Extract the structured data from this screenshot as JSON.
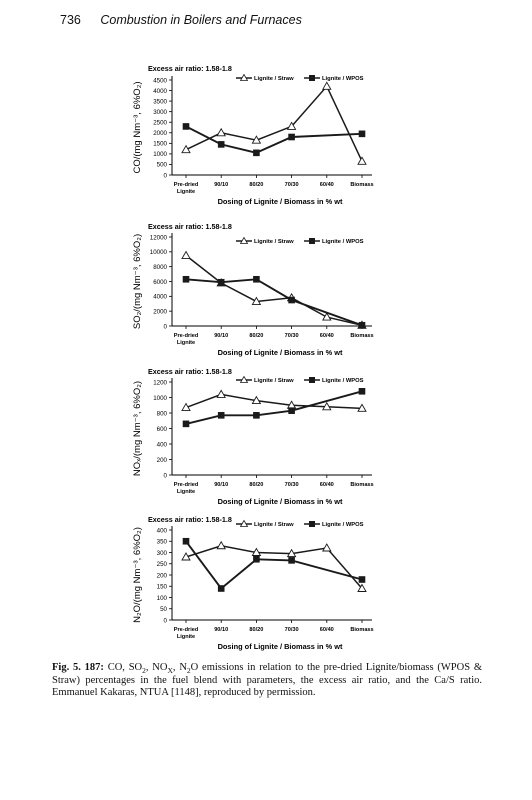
{
  "header": {
    "page_number": "736",
    "running_title": "Combustion in Boilers and Furnaces"
  },
  "caption": {
    "label": "Fig. 5. 187:",
    "text_parts": [
      " CO, SO",
      "2",
      ", NO",
      "X",
      ", N",
      "2",
      "O emissions in relation to the pre-dried Lignite/biomass (WPOS & Straw) percentages in the fuel blend with parameters, the excess air ratio, and the Ca/S ratio. Emmanuel Kakaras, NTUA [1148], reproduced by permission."
    ]
  },
  "chart_data": [
    {
      "type": "line",
      "title": "Excess air ratio: 1.58-1.8",
      "ylabel": "CO/(mg Nm⁻³, 6%O₂)",
      "xlabel": "Dosing of Lignite / Biomass in % wt",
      "categories": [
        "Pre-dried Lignite",
        "90/10",
        "80/20",
        "70/30",
        "60/40",
        "Biomass"
      ],
      "ylim": [
        0,
        4500
      ],
      "yticks": [
        0,
        500,
        1000,
        1500,
        2000,
        2500,
        3000,
        3500,
        4000,
        4500
      ],
      "series": [
        {
          "name": "Lignite / Straw",
          "marker": "triangle",
          "x": [
            0,
            1,
            2,
            3,
            4,
            5
          ],
          "values": [
            1200,
            2000,
            1650,
            2300,
            4200,
            650
          ]
        },
        {
          "name": "Lignite / WPOS",
          "marker": "square",
          "x": [
            0,
            1,
            2,
            3,
            5
          ],
          "values": [
            2300,
            1450,
            1050,
            1800,
            1950
          ]
        }
      ]
    },
    {
      "type": "line",
      "title": "Excess air ratio: 1.58-1.8",
      "ylabel": "SO₂/(mg Nm⁻³, 6%O₂)",
      "xlabel": "Dosing of Lignite / Biomass in % wt",
      "categories": [
        "Pre-dried Lignite",
        "90/10",
        "80/20",
        "70/30",
        "60/40",
        "Biomass"
      ],
      "ylim": [
        0,
        12000
      ],
      "yticks": [
        0,
        2000,
        4000,
        6000,
        8000,
        10000,
        12000
      ],
      "series": [
        {
          "name": "Lignite / Straw",
          "marker": "triangle",
          "x": [
            0,
            1,
            2,
            3,
            4,
            5
          ],
          "values": [
            9500,
            5800,
            3300,
            3800,
            1200,
            100
          ]
        },
        {
          "name": "Lignite / WPOS",
          "marker": "square",
          "x": [
            0,
            1,
            2,
            3,
            5
          ],
          "values": [
            6300,
            5900,
            6300,
            3500,
            100
          ]
        }
      ]
    },
    {
      "type": "line",
      "title": "Excess air ratio: 1.58-1.8",
      "ylabel": "NOₓ/(mg Nm⁻³, 6%O₂)",
      "xlabel": "Dosing of Lignite / Biomass in % wt",
      "categories": [
        "Pre-dried Lignite",
        "90/10",
        "80/20",
        "70/30",
        "60/40",
        "Biomass"
      ],
      "ylim": [
        0,
        1200
      ],
      "yticks": [
        0,
        200,
        400,
        600,
        800,
        1000,
        1200
      ],
      "series": [
        {
          "name": "Lignite / Straw",
          "marker": "triangle",
          "x": [
            0,
            1,
            2,
            3,
            4,
            5
          ],
          "values": [
            870,
            1040,
            960,
            900,
            880,
            860
          ]
        },
        {
          "name": "Lignite / WPOS",
          "marker": "square",
          "x": [
            0,
            1,
            2,
            3,
            5
          ],
          "values": [
            660,
            770,
            770,
            830,
            1080
          ]
        }
      ]
    },
    {
      "type": "line",
      "title": "Excess air ratio: 1.58-1.8",
      "ylabel": "N₂O/(mg Nm⁻³, 6%O₂)",
      "xlabel": "Dosing of Lignite / Biomass in % wt",
      "categories": [
        "Pre-dried Lignite",
        "90/10",
        "80/20",
        "70/30",
        "60/40",
        "Biomass"
      ],
      "ylim": [
        0,
        400
      ],
      "yticks": [
        0,
        50,
        100,
        150,
        200,
        250,
        300,
        350,
        400
      ],
      "series": [
        {
          "name": "Lignite / Straw",
          "marker": "triangle",
          "x": [
            0,
            1,
            2,
            3,
            4,
            5
          ],
          "values": [
            280,
            330,
            300,
            295,
            320,
            140
          ]
        },
        {
          "name": "Lignite / WPOS",
          "marker": "square",
          "x": [
            0,
            1,
            2,
            3,
            5
          ],
          "values": [
            350,
            140,
            270,
            265,
            180
          ]
        }
      ]
    }
  ]
}
